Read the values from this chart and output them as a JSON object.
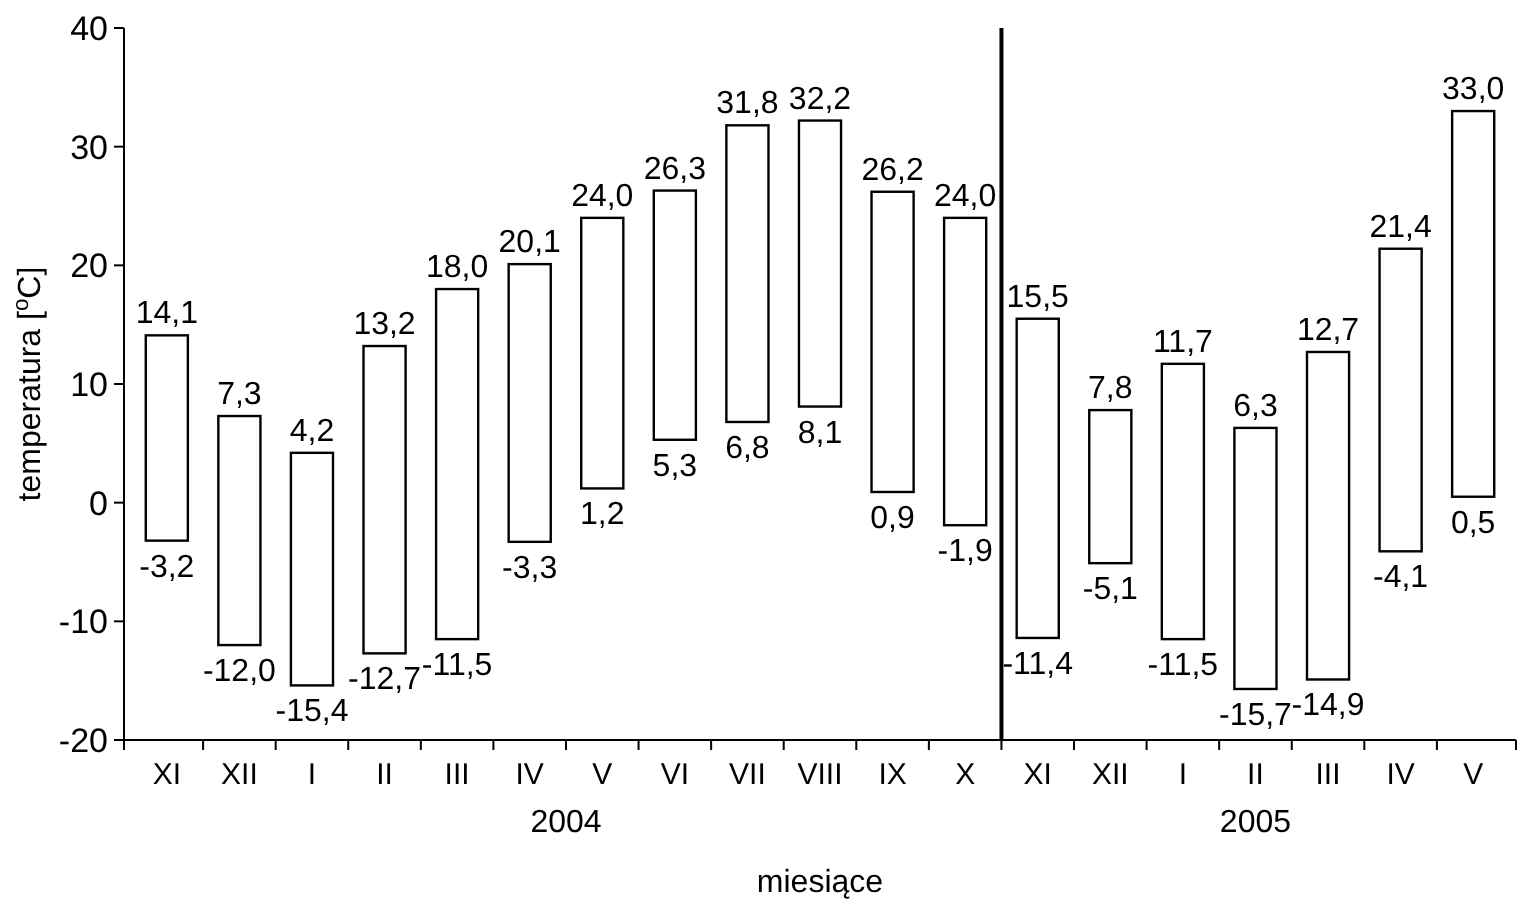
{
  "chart_data": {
    "type": "bar",
    "xlabel": "miesiące",
    "ylabel": "temperatura [$^{o}$C]",
    "categories": [
      "XI",
      "XII",
      "I",
      "II",
      "III",
      "IV",
      "V",
      "VI",
      "VII",
      "VIII",
      "IX",
      "X",
      "XI",
      "XII",
      "I",
      "II",
      "III",
      "IV",
      "V"
    ],
    "base": [
      -3.2,
      -12.0,
      -15.4,
      -12.7,
      -11.5,
      -3.3,
      1.2,
      5.3,
      6.8,
      8.1,
      0.9,
      -1.9,
      -11.4,
      -5.1,
      -11.5,
      -15.7,
      -14.9,
      -4.1,
      0.5
    ],
    "values": [
      17.3,
      19.3,
      19.6,
      25.9,
      29.5,
      23.4,
      22.8,
      21.0,
      25.0,
      24.1,
      25.3,
      25.9,
      26.9,
      12.9,
      23.2,
      22.0,
      27.6,
      25.5,
      32.5
    ],
    "color": "#ffffff",
    "ylim": [
      -20,
      40
    ],
    "yticks": [
      -20,
      -10,
      0,
      10,
      20,
      30,
      40
    ],
    "grid": false,
    "legend": false,
    "annotations": [
      "14,1",
      "-3,2",
      "7,3",
      "-12,0",
      "4,2",
      "-15,4",
      "13,2",
      "-12,7",
      "18,0",
      "-11,5",
      "20,1",
      "-3,3",
      "24,0",
      "1,2",
      "26,3",
      "5,3",
      "31,8",
      "6,8",
      "32,2",
      "8,1",
      "26,2",
      "0,9",
      "24,0",
      "-1,9",
      "15,5",
      "-11,4",
      "7,8",
      "-5,1",
      "11,7",
      "-11,5",
      "6,3",
      "-15,7",
      "12,7",
      "-14,9",
      "21,4",
      "-4,1",
      "33,0",
      "0,5",
      "2004",
      "2005"
    ]
  }
}
